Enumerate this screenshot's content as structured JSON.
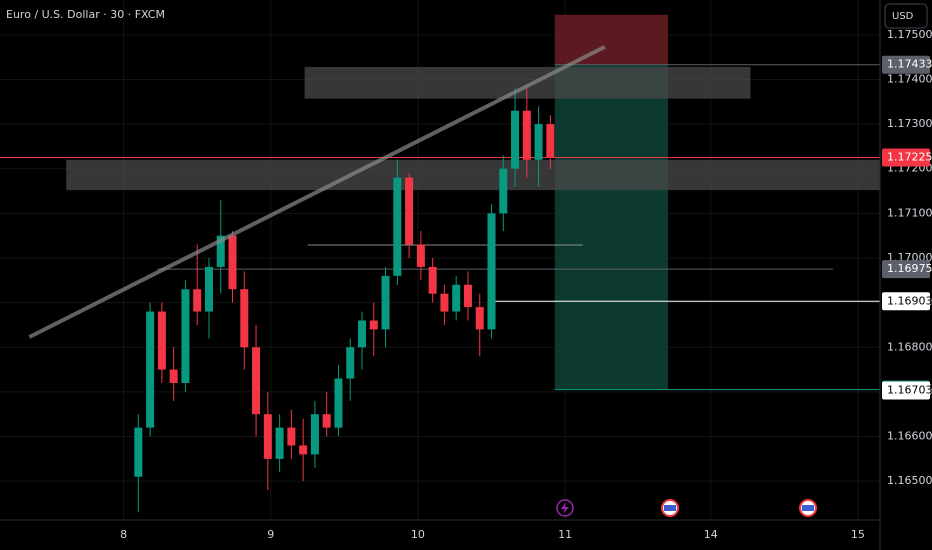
{
  "chart_data": {
    "type": "candlestick",
    "title": "Euro / U.S. Dollar · 30 · FXCM",
    "currency": "USD",
    "up_color": "#089981",
    "down_color": "#f23645",
    "xlim": [
      -0.84,
      5.14
    ],
    "xticks": [
      {
        "value": 0,
        "label": "8"
      },
      {
        "value": 1,
        "label": "9"
      },
      {
        "value": 2,
        "label": "10"
      },
      {
        "value": 3,
        "label": "11"
      },
      {
        "value": 3.99,
        "label": "14"
      },
      {
        "value": 4.99,
        "label": "15"
      }
    ],
    "ylim": [
      1.16413,
      1.17578
    ],
    "yticks": [
      {
        "value": 1.175,
        "label": "1.17500"
      },
      {
        "value": 1.174,
        "label": "1.17400"
      },
      {
        "value": 1.173,
        "label": "1.17300"
      },
      {
        "value": 1.172,
        "label": "1.17200"
      },
      {
        "value": 1.171,
        "label": "1.17100"
      },
      {
        "value": 1.17,
        "label": "1.17000"
      },
      {
        "value": 1.169,
        "label": "1.16900"
      },
      {
        "value": 1.168,
        "label": "1.16800"
      },
      {
        "value": 1.167,
        "label": "1.16700"
      },
      {
        "value": 1.166,
        "label": "1.16600"
      },
      {
        "value": 1.165,
        "label": "1.16500"
      }
    ],
    "candles": {
      "x": [
        0.1,
        0.18,
        0.26,
        0.34,
        0.42,
        0.5,
        0.58,
        0.66,
        0.74,
        0.82,
        0.9,
        0.98,
        1.06,
        1.14,
        1.22,
        1.3,
        1.38,
        1.46,
        1.54,
        1.62,
        1.7,
        1.78,
        1.86,
        1.94,
        2.02,
        2.1,
        2.18,
        2.26,
        2.34,
        2.42,
        2.5,
        2.58,
        2.66,
        2.74,
        2.82,
        2.9
      ],
      "open": [
        1.1651,
        1.1662,
        1.1688,
        1.1675,
        1.1672,
        1.1693,
        1.1688,
        1.1698,
        1.1705,
        1.1693,
        1.168,
        1.1665,
        1.1655,
        1.1662,
        1.1658,
        1.1656,
        1.1665,
        1.1662,
        1.1673,
        1.168,
        1.1686,
        1.1684,
        1.1696,
        1.1718,
        1.1703,
        1.1698,
        1.1692,
        1.1688,
        1.1694,
        1.1689,
        1.1684,
        1.171,
        1.172,
        1.1733,
        1.1722,
        1.173
      ],
      "high": [
        1.1665,
        1.169,
        1.169,
        1.168,
        1.1695,
        1.1703,
        1.17,
        1.1713,
        1.1706,
        1.1697,
        1.1685,
        1.167,
        1.1665,
        1.1666,
        1.1664,
        1.1668,
        1.167,
        1.1676,
        1.1682,
        1.1688,
        1.169,
        1.1698,
        1.1722,
        1.1719,
        1.1706,
        1.17,
        1.1694,
        1.1696,
        1.1697,
        1.1692,
        1.1712,
        1.1723,
        1.1738,
        1.1738,
        1.1734,
        1.1732
      ],
      "low": [
        1.1643,
        1.166,
        1.1672,
        1.1668,
        1.167,
        1.1685,
        1.1682,
        1.1692,
        1.169,
        1.1675,
        1.166,
        1.1648,
        1.1652,
        1.1655,
        1.165,
        1.1653,
        1.166,
        1.166,
        1.1668,
        1.1675,
        1.1678,
        1.168,
        1.1694,
        1.17,
        1.1695,
        1.169,
        1.1685,
        1.1686,
        1.1686,
        1.1678,
        1.1682,
        1.1706,
        1.1716,
        1.1718,
        1.1716,
        1.172
      ],
      "close": [
        1.1662,
        1.1688,
        1.1675,
        1.1672,
        1.1693,
        1.1688,
        1.1698,
        1.1705,
        1.1693,
        1.168,
        1.1665,
        1.1655,
        1.1662,
        1.1658,
        1.1656,
        1.1665,
        1.1662,
        1.1673,
        1.168,
        1.1686,
        1.1684,
        1.1696,
        1.1718,
        1.1703,
        1.1698,
        1.1692,
        1.1688,
        1.1694,
        1.1689,
        1.1684,
        1.171,
        1.172,
        1.1733,
        1.1722,
        1.173,
        1.17225
      ]
    },
    "trendline": {
      "x": [
        -0.64,
        3.27
      ],
      "price": [
        1.16823,
        1.17473
      ],
      "color": "#8a8a8a"
    },
    "zones": [
      {
        "x": [
          1.23,
          4.26
        ],
        "price": [
          1.17357,
          1.17428
        ],
        "color": "#4a4a4a"
      },
      {
        "x": [
          -0.39,
          5.14
        ],
        "price": [
          1.17152,
          1.1722
        ],
        "color": "#4a4a4a"
      }
    ],
    "position": {
      "x": [
        2.93,
        3.7
      ],
      "entry": 1.17433,
      "stop": 1.17545,
      "target": 1.16705,
      "stop_color": "#5a1a20",
      "target_color": "#0c3a30"
    },
    "levels": [
      {
        "value": 1.17433,
        "color": "#5d606b",
        "text_color": "#ffffff",
        "x": [
          2.93,
          5.14
        ]
      },
      {
        "value": 1.17225,
        "color": "#f23645",
        "text_color": "#ffffff",
        "x": [
          -0.84,
          5.14
        ]
      },
      {
        "value": 1.16975,
        "color": "#5d606b",
        "text_color": "#ffffff",
        "x": [
          0.23,
          4.82
        ]
      },
      {
        "value": 1.16903,
        "color": "#ffffff",
        "text_color": "#000000",
        "x": [
          2.48,
          5.14
        ]
      },
      {
        "value": 1.16705,
        "color": "#089981",
        "text_color": "#ffffff",
        "x": [
          2.93,
          5.14
        ]
      },
      {
        "value": 1.16703,
        "color": "#ffffff",
        "text_color": "#000000"
      }
    ],
    "lines": [
      {
        "value": 1.17029,
        "x": [
          1.25,
          3.12
        ],
        "color": "#8a8a8a"
      }
    ]
  }
}
